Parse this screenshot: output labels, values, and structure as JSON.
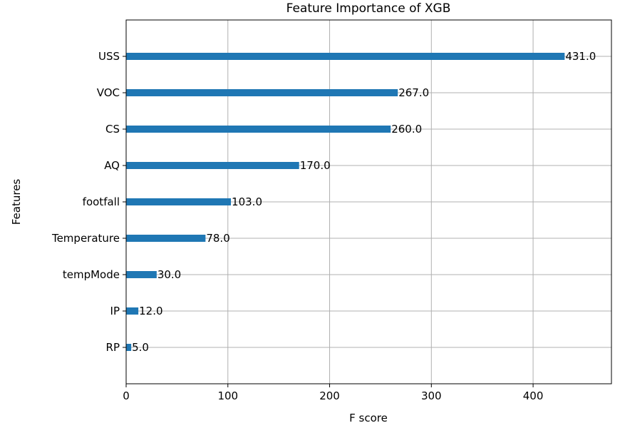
{
  "chart_data": {
    "type": "bar",
    "orientation": "horizontal",
    "title": "Feature Importance of XGB",
    "xlabel": "F score",
    "ylabel": "Features",
    "categories": [
      "USS",
      "VOC",
      "CS",
      "AQ",
      "footfall",
      "Temperature",
      "tempMode",
      "IP",
      "RP"
    ],
    "values": [
      431.0,
      267.0,
      260.0,
      170.0,
      103.0,
      78.0,
      30.0,
      12.0,
      5.0
    ],
    "data_labels": [
      "431.0",
      "267.0",
      "260.0",
      "170.0",
      "103.0",
      "78.0",
      "30.0",
      "12.0",
      "5.0"
    ],
    "xlim": [
      0,
      477
    ],
    "xticks": [
      0,
      100,
      200,
      300,
      400
    ],
    "xtick_labels": [
      "0",
      "100",
      "200",
      "300",
      "400"
    ],
    "grid": true,
    "bar_color": "#1f77b4"
  }
}
